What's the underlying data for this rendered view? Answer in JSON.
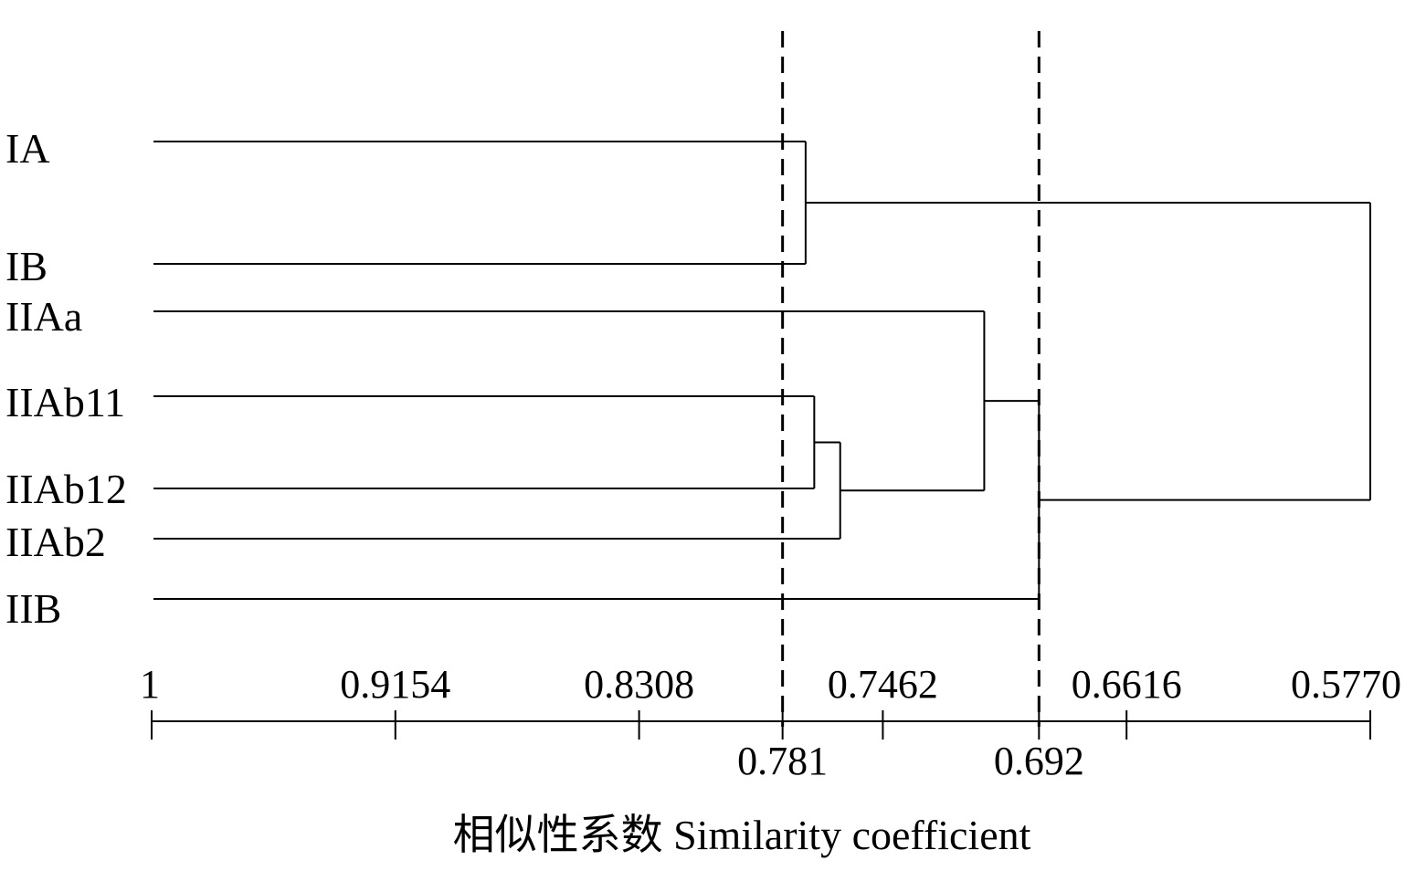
{
  "chart_data": {
    "type": "dendrogram",
    "xlabel": "相似性系数 Similarity coefficient",
    "axis": {
      "reversed": true,
      "range": [
        1,
        0.577
      ],
      "tick_labels": [
        "1",
        "0.9154",
        "0.8308",
        "0.7462",
        "0.6616",
        "0.5770"
      ],
      "tick_values": [
        1,
        0.9154,
        0.8308,
        0.7462,
        0.6616,
        0.577
      ]
    },
    "leaves": [
      "IA",
      "IB",
      "IIAa",
      "IIAb11",
      "IIAb12",
      "IIAb2",
      "IIB"
    ],
    "merges": [
      {
        "id": "m1",
        "left": "IIAb11",
        "right": "IIAb12",
        "similarity": 0.77
      },
      {
        "id": "m2",
        "left": "IA",
        "right": "IB",
        "similarity": 0.773
      },
      {
        "id": "m3",
        "left": "m1",
        "right": "IIAb2",
        "similarity": 0.761
      },
      {
        "id": "m4",
        "left": "IIAa",
        "right": "m3",
        "similarity": 0.711
      },
      {
        "id": "m5",
        "left": "m4",
        "right": "IIB",
        "similarity": 0.692
      },
      {
        "id": "m6",
        "left": "m2",
        "right": "m5",
        "similarity": 0.577
      }
    ],
    "thresholds": [
      {
        "value": 0.781,
        "label": "0.781"
      },
      {
        "value": 0.692,
        "label": "0.692"
      }
    ]
  }
}
